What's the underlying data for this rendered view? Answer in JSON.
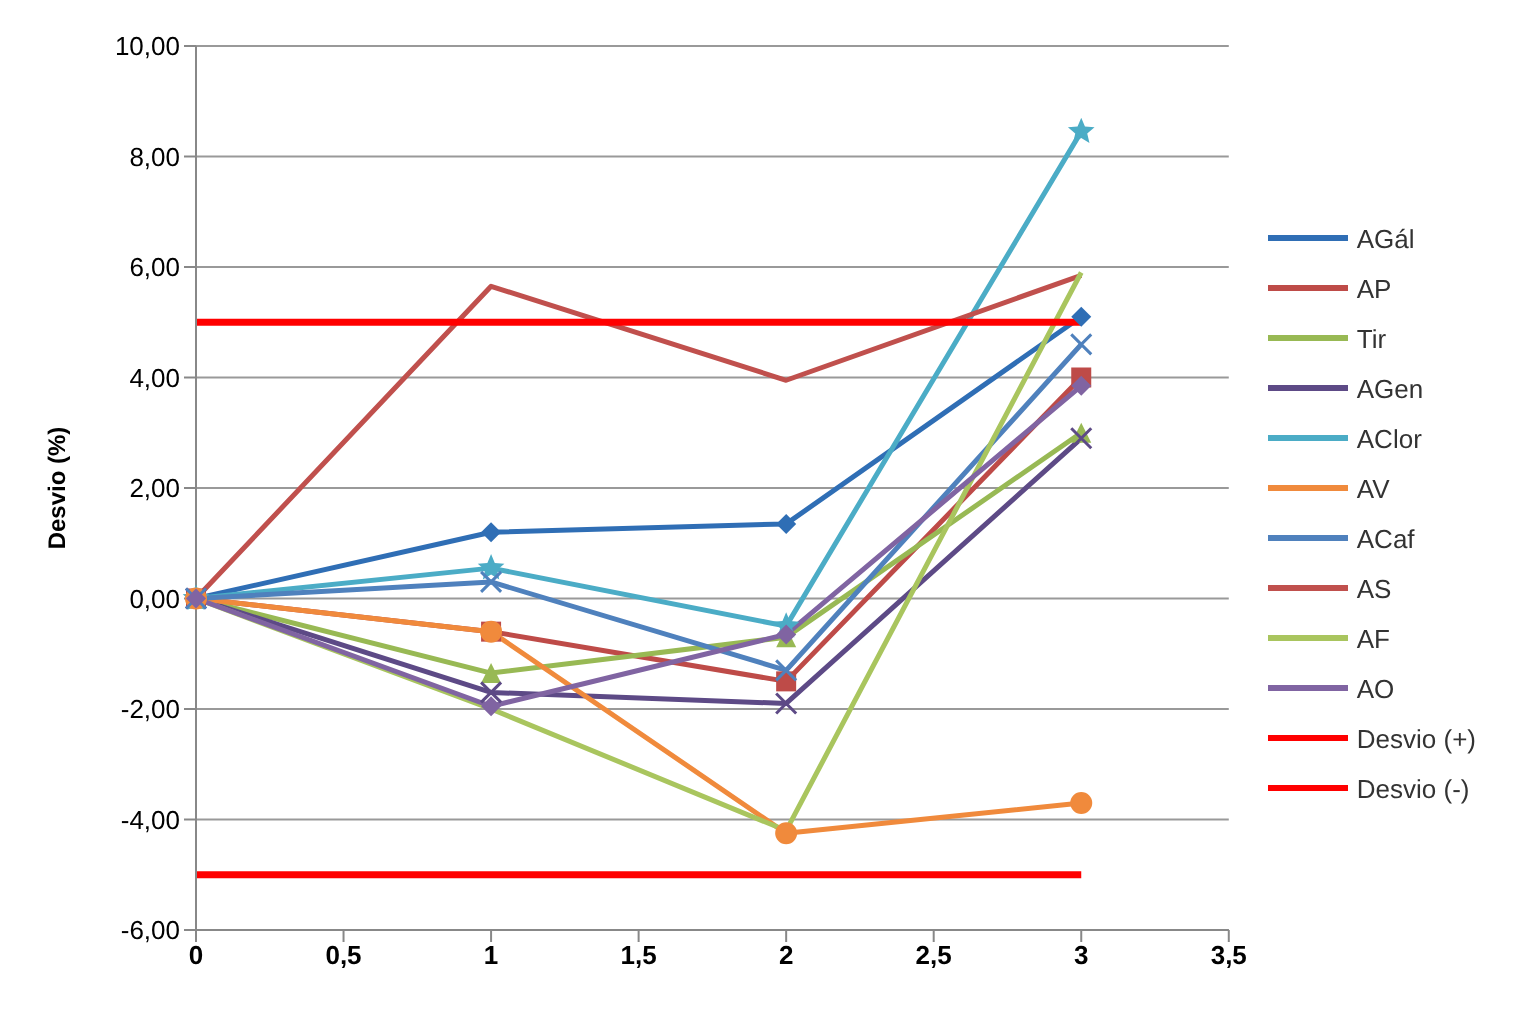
{
  "chart_data": {
    "type": "line",
    "ylabel": "Desvio (%)",
    "x": [
      0,
      1,
      2,
      3
    ],
    "xlim": [
      0,
      3.5
    ],
    "xticks": [
      0,
      {
        "value": 0.5,
        "label": "0,5"
      },
      1,
      {
        "value": 1.5,
        "label": "1,5"
      },
      2,
      {
        "value": 2.5,
        "label": "2,5"
      },
      3,
      {
        "value": 3.5,
        "label": "3,5"
      }
    ],
    "ylim": [
      -6,
      10
    ],
    "yticks": [
      {
        "value": -6,
        "label": "-6,00"
      },
      {
        "value": -4,
        "label": "-4,00"
      },
      {
        "value": -2,
        "label": "-2,00"
      },
      {
        "value": 0,
        "label": "0,00"
      },
      {
        "value": 2,
        "label": "2,00"
      },
      {
        "value": 4,
        "label": "4,00"
      },
      {
        "value": 6,
        "label": "6,00"
      },
      {
        "value": 8,
        "label": "8,00"
      },
      {
        "value": 10,
        "label": "10,00"
      }
    ],
    "grid": "y",
    "legend": "right",
    "series": [
      {
        "name": "AGál",
        "color": "#2f6eb5",
        "marker": "diamond",
        "values": [
          0,
          1.2,
          1.35,
          5.1
        ]
      },
      {
        "name": "AP",
        "color": "#be4b48",
        "marker": "square",
        "values": [
          0,
          -0.6,
          -1.5,
          4.0
        ]
      },
      {
        "name": "Tir",
        "color": "#98b954",
        "marker": "triangle",
        "values": [
          0,
          -1.35,
          -0.7,
          3.0
        ]
      },
      {
        "name": "AGen",
        "color": "#5d4a86",
        "marker": "cross",
        "values": [
          0,
          -1.7,
          -1.9,
          2.9
        ]
      },
      {
        "name": "AClor",
        "color": "#4bacc6",
        "marker": "star",
        "values": [
          0,
          0.55,
          -0.5,
          8.45
        ]
      },
      {
        "name": "AV",
        "color": "#f08a3c",
        "marker": "circle",
        "values": [
          0,
          -0.6,
          -4.25,
          -3.7
        ]
      },
      {
        "name": "ACaf",
        "color": "#4f81bd",
        "marker": "cross",
        "values": [
          0,
          0.3,
          -1.3,
          4.6
        ]
      },
      {
        "name": "AS",
        "color": "#c0504d",
        "marker": "none",
        "values": [
          0,
          5.65,
          3.95,
          5.85
        ]
      },
      {
        "name": "AF",
        "color": "#a9c55e",
        "marker": "none",
        "values": [
          0,
          -2.0,
          -4.2,
          5.9
        ]
      },
      {
        "name": "AO",
        "color": "#8064a2",
        "marker": "diamond",
        "values": [
          0,
          -1.95,
          -0.65,
          3.85
        ]
      },
      {
        "name": "Desvio (+)",
        "color": "#ff0000",
        "marker": "none",
        "values": [
          5,
          5,
          5,
          5
        ]
      },
      {
        "name": "Desvio (-)",
        "color": "#ff0000",
        "marker": "none",
        "values": [
          -5,
          -5,
          -5,
          -5
        ]
      }
    ]
  }
}
